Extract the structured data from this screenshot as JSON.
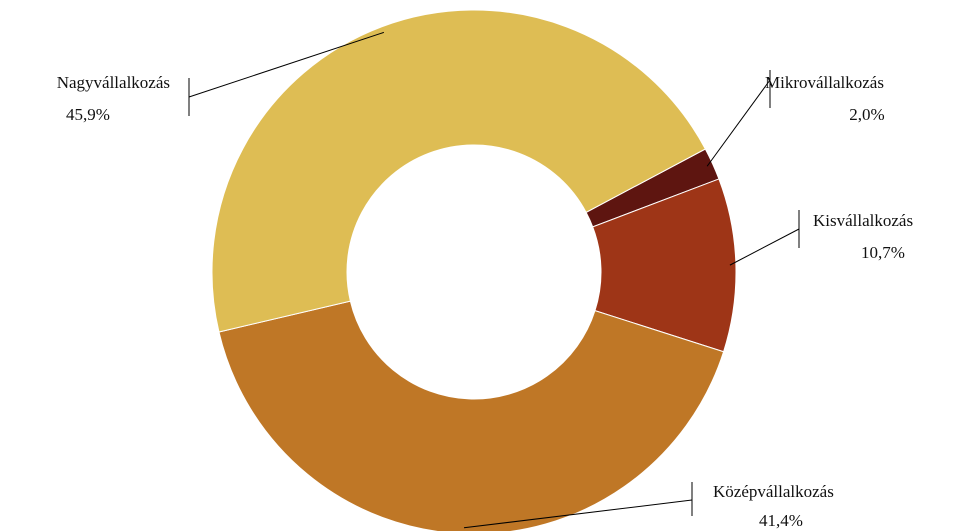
{
  "chart_data": {
    "type": "pie",
    "variant": "donut",
    "slices": [
      {
        "name": "Mikrovállalkozás",
        "value": 2.0,
        "label": "2,0%",
        "color": "#5E1510"
      },
      {
        "name": "Kisvállalkozás",
        "value": 10.7,
        "label": "10,7%",
        "color": "#9E3517"
      },
      {
        "name": "Középvállalkozás",
        "value": 41.4,
        "label": "41,4%",
        "color": "#BF7726"
      },
      {
        "name": "Nagyvállalkozás",
        "value": 45.9,
        "label": "45,9%",
        "color": "#DEBD54"
      }
    ]
  }
}
